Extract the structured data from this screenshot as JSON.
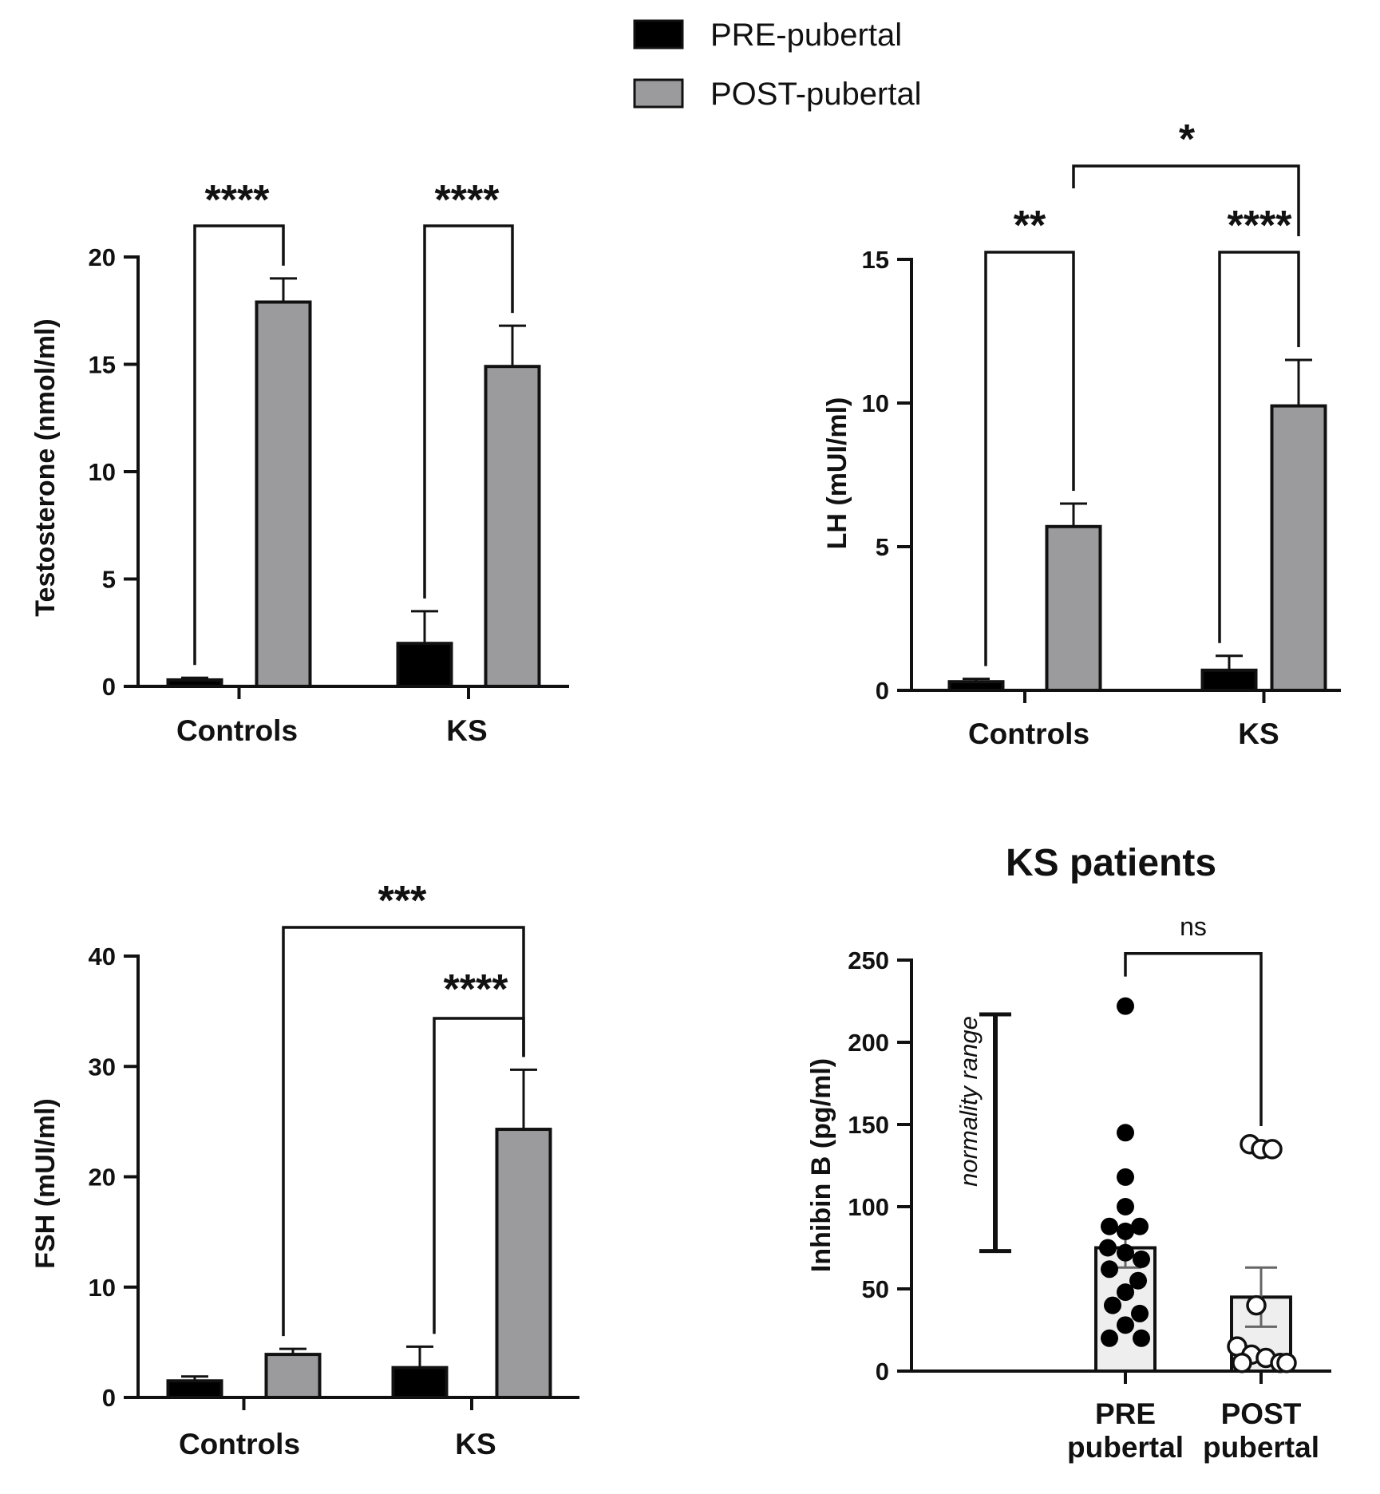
{
  "legend": {
    "items": [
      {
        "label": "PRE-pubertal",
        "color": "#000000"
      },
      {
        "label": "POST-pubertal",
        "color": "#9b9b9e"
      }
    ]
  },
  "chart_data": [
    {
      "type": "bar",
      "categories": [
        "Controls",
        "KS"
      ],
      "series": [
        {
          "name": "PRE-pubertal",
          "values": [
            0.3,
            2.0
          ],
          "errors": [
            0.1,
            1.5
          ]
        },
        {
          "name": "POST-pubertal",
          "values": [
            17.9,
            14.9
          ],
          "errors": [
            1.1,
            1.9
          ]
        }
      ],
      "ylabel": "Testosterone (nmol/ml)",
      "ylim": [
        0,
        20
      ],
      "yticks": [
        0,
        5,
        10,
        15,
        20
      ],
      "significance": [
        {
          "label": "****",
          "from": "Controls PRE-pubertal",
          "to": "Controls POST-pubertal"
        },
        {
          "label": "****",
          "from": "KS PRE-pubertal",
          "to": "KS POST-pubertal"
        }
      ]
    },
    {
      "type": "bar",
      "categories": [
        "Controls",
        "KS"
      ],
      "series": [
        {
          "name": "PRE-pubertal",
          "values": [
            0.3,
            0.7
          ],
          "errors": [
            0.1,
            0.5
          ]
        },
        {
          "name": "POST-pubertal",
          "values": [
            5.7,
            9.9
          ],
          "errors": [
            0.8,
            1.6
          ]
        }
      ],
      "ylabel": "LH (mUI/ml)",
      "ylim": [
        0,
        15
      ],
      "yticks": [
        0,
        5,
        10,
        15
      ],
      "significance": [
        {
          "label": "**",
          "from": "Controls PRE-pubertal",
          "to": "Controls POST-pubertal"
        },
        {
          "label": "****",
          "from": "KS PRE-pubertal",
          "to": "KS POST-pubertal"
        },
        {
          "label": "*",
          "from": "Controls POST-pubertal",
          "to": "KS POST-pubertal"
        }
      ]
    },
    {
      "type": "bar",
      "categories": [
        "Controls",
        "KS"
      ],
      "series": [
        {
          "name": "PRE-pubertal",
          "values": [
            1.5,
            2.7
          ],
          "errors": [
            0.4,
            1.9
          ]
        },
        {
          "name": "POST-pubertal",
          "values": [
            3.9,
            24.3
          ],
          "errors": [
            0.5,
            5.4
          ]
        }
      ],
      "ylabel": "FSH (mUI/ml)",
      "ylim": [
        0,
        40
      ],
      "yticks": [
        0,
        10,
        20,
        30,
        40
      ],
      "significance": [
        {
          "label": "***",
          "from": "Controls POST-pubertal",
          "to": "KS POST-pubertal"
        },
        {
          "label": "****",
          "from": "KS PRE-pubertal",
          "to": "KS POST-pubertal"
        }
      ]
    },
    {
      "type": "scatter",
      "title": "KS patients",
      "categories": [
        "PRE pubertal",
        "POST pubertal"
      ],
      "bars": [
        {
          "category": "PRE pubertal",
          "mean": 75,
          "sem": 12
        },
        {
          "category": "POST pubertal",
          "mean": 45,
          "sem": 18
        }
      ],
      "points": [
        {
          "category": "PRE pubertal",
          "values": [
            222,
            145,
            118,
            100,
            88,
            88,
            85,
            75,
            72,
            68,
            62,
            55,
            48,
            40,
            35,
            28,
            20,
            20
          ]
        },
        {
          "category": "POST pubertal",
          "values": [
            138,
            135,
            135,
            40,
            15,
            10,
            8,
            5,
            5,
            5
          ]
        }
      ],
      "ylabel": "Inhibin B (pg/ml)",
      "ylim": [
        0,
        250
      ],
      "yticks": [
        0,
        50,
        100,
        150,
        200,
        250
      ],
      "normality_range": {
        "label": "normality range",
        "low": 73,
        "high": 217
      },
      "significance": [
        {
          "label": "ns",
          "from": "PRE pubertal",
          "to": "POST pubertal"
        }
      ]
    }
  ]
}
